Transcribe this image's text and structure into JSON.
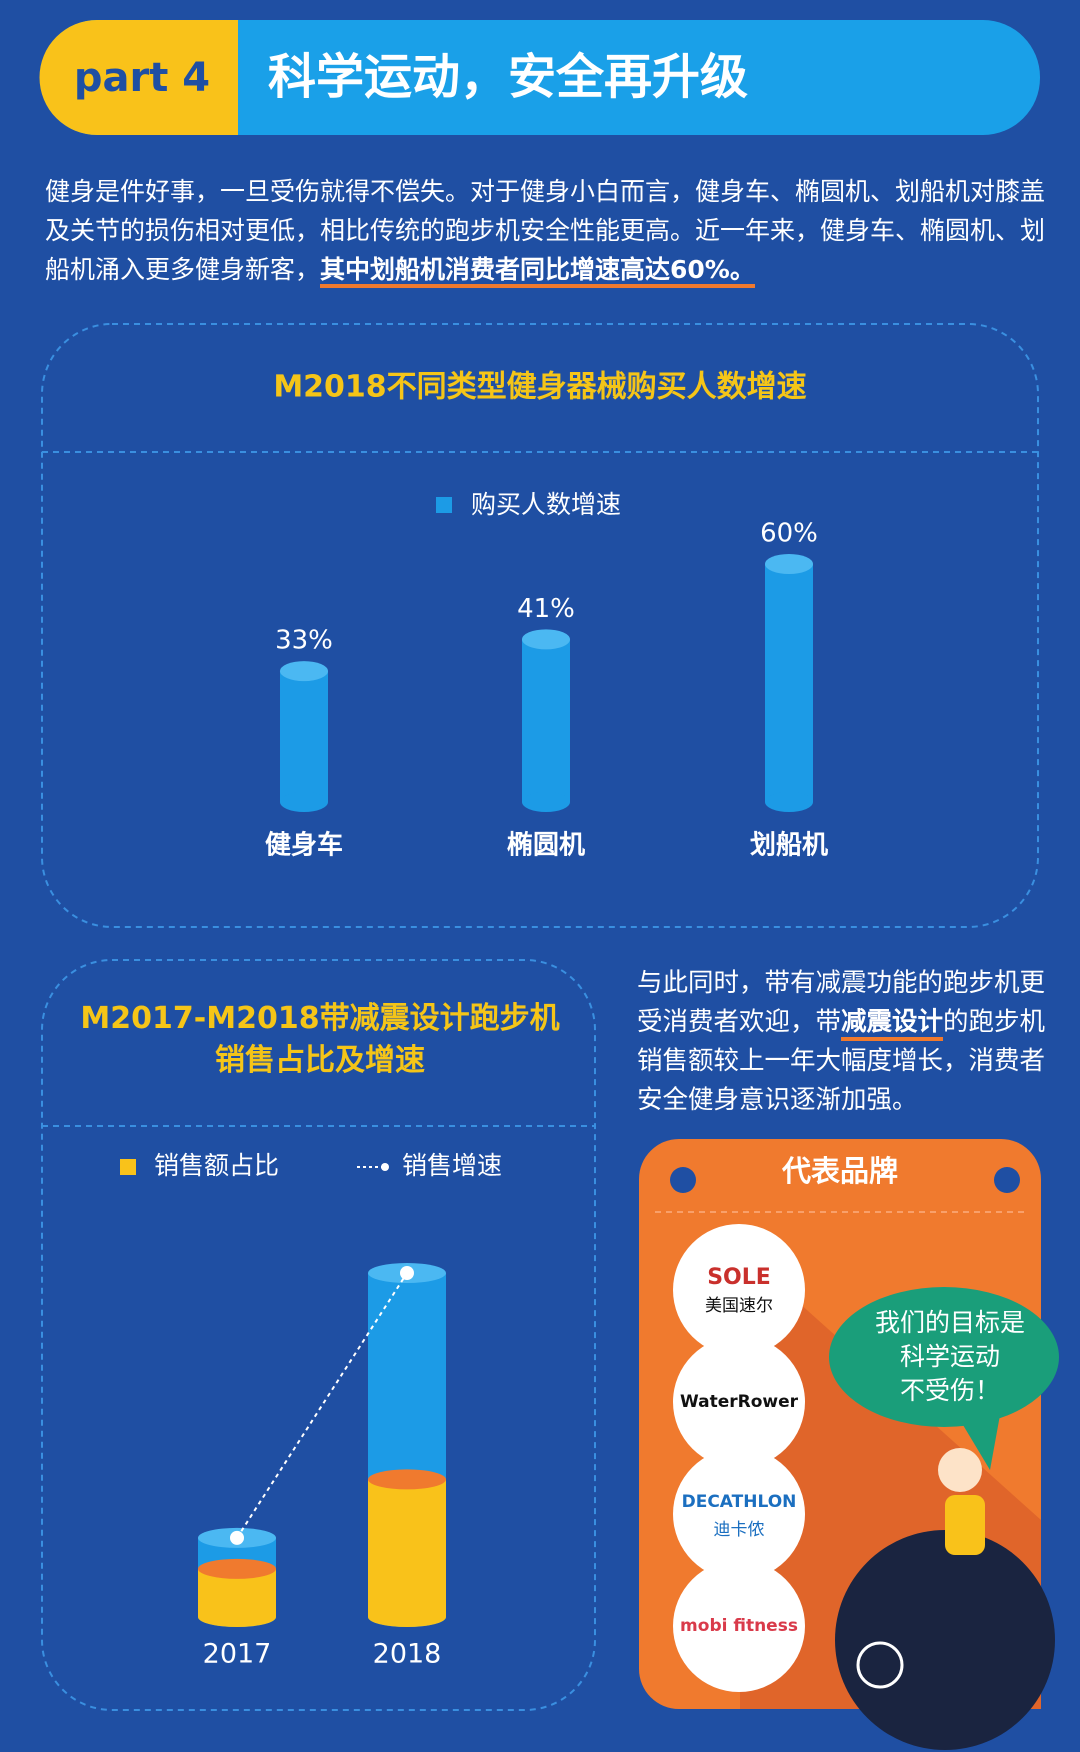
{
  "header": {
    "tag": "part 4",
    "title": "科学运动，安全再升级"
  },
  "intro": {
    "text": "健身是件好事，一旦受伤就得不偿失。对于健身小白而言，健身车、椭圆机、划船机对膝盖及关节的损伤相对更低，相比传统的跑步机安全性能更高。近一年来，健身车、椭圆机、划船机涌入更多健身新客，",
    "highlight": "其中划船机消费者同比增速高达60%。"
  },
  "chart_data": [
    {
      "type": "bar",
      "title": "M2018不同类型健身器械购买人数增速",
      "categories": [
        "健身车",
        "椭圆机",
        "划船机"
      ],
      "series": [
        {
          "name": "购买人数增速",
          "color": "#1c9be6",
          "values": [
            33,
            41,
            60
          ],
          "value_labels": [
            "33%",
            "41%",
            "60%"
          ]
        }
      ],
      "ylim": [
        0,
        60
      ]
    },
    {
      "type": "bar_line",
      "title": "M2017-M2018带减震设计跑步机销售占比及增速",
      "categories": [
        "2017",
        "2018"
      ],
      "series": [
        {
          "name": "销售额占比",
          "color": "#f9c21a",
          "values": [
            14,
            40
          ]
        },
        {
          "name": "销售增速",
          "color": "#1c9be6",
          "values": [
            23,
            100
          ]
        }
      ],
      "ylim": [
        0,
        100
      ]
    }
  ],
  "side_text": {
    "text": "与此同时，带有减震功能的跑步机更受消费者欢迎，带",
    "highlight": "减震设计",
    "rest": "的跑步机销售额较上一年大幅度增长，消费者安全健身意识逐渐加强。"
  },
  "brands": {
    "title": "代表品牌",
    "items": [
      {
        "name": "SOLE",
        "sub": "美国速尔"
      },
      {
        "name": "WaterRower"
      },
      {
        "name": "DECATHLON",
        "sub": "迪卡侬"
      },
      {
        "name": "mobi fitness"
      }
    ]
  },
  "bubble": {
    "lines": [
      "我们的目标是",
      "科学运动",
      "不受伤！"
    ]
  }
}
